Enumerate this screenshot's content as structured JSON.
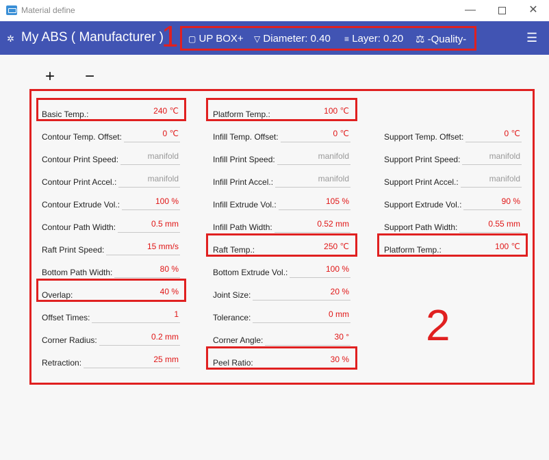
{
  "window": {
    "title": "Material define",
    "minimize_glyph": "—",
    "close_glyph": "✕"
  },
  "header": {
    "material_name": "My ABS ( Manufacturer )",
    "printer_icon": "▢",
    "printer": "UP BOX+",
    "nozzle_icon": "▽",
    "diameter": "Diameter: 0.40",
    "layer_icon": "≡",
    "layer": "Layer: 0.20",
    "quality_icon": "⚖",
    "quality": "-Quality-",
    "gear_icon": "✲",
    "menu_icon": "☰"
  },
  "toolbar": {
    "add_label": "+",
    "remove_label": "−"
  },
  "annotations": {
    "marker_1": "1",
    "marker_2": "2"
  },
  "colors": {
    "header_bg": "#4154b3",
    "annotation_red": "#e02020",
    "value_red": "#e01515"
  },
  "columns": {
    "left": [
      {
        "label": "Basic Temp.:",
        "value": "240 ℃"
      },
      {
        "label": "Contour Temp. Offset:",
        "value": "0 ℃"
      },
      {
        "label": "Contour Print Speed:",
        "value": "manifold"
      },
      {
        "label": "Contour Print Accel.:",
        "value": "manifold"
      },
      {
        "label": "Contour Extrude Vol.:",
        "value": "100 %"
      },
      {
        "label": "Contour Path Width:",
        "value": "0.5 mm"
      },
      {
        "label": "Raft Print Speed:",
        "value": "15 mm/s"
      },
      {
        "label": "Bottom Path Width:",
        "value": "80 %"
      },
      {
        "label": "Overlap:",
        "value": "40 %"
      },
      {
        "label": "Offset Times:",
        "value": "1"
      },
      {
        "label": "Corner Radius:",
        "value": "0.2 mm"
      },
      {
        "label": "Retraction:",
        "value": "25 mm"
      }
    ],
    "middle": [
      {
        "label": "Platform Temp.:",
        "value": "100 ℃"
      },
      {
        "label": "Infill Temp. Offset:",
        "value": "0 ℃"
      },
      {
        "label": "Infill Print Speed:",
        "value": "manifold"
      },
      {
        "label": "Infill Print Accel.:",
        "value": "manifold"
      },
      {
        "label": "Infill Extrude Vol.:",
        "value": "105 %"
      },
      {
        "label": "Infill Path Width:",
        "value": "0.52 mm"
      },
      {
        "label": "Raft Temp.:",
        "value": "250 ℃"
      },
      {
        "label": "Bottom Extrude Vol.:",
        "value": "100 %"
      },
      {
        "label": "Joint Size:",
        "value": "20 %"
      },
      {
        "label": "Tolerance:",
        "value": "0 mm"
      },
      {
        "label": "Corner Angle:",
        "value": "30 °"
      },
      {
        "label": "Peel Ratio:",
        "value": "30 %"
      }
    ],
    "right": [
      {
        "label": "Support Temp. Offset:",
        "value": "0 ℃"
      },
      {
        "label": "Support Print Speed:",
        "value": "manifold"
      },
      {
        "label": "Support Print Accel.:",
        "value": "manifold"
      },
      {
        "label": "Support Extrude Vol.:",
        "value": "90 %"
      },
      {
        "label": "Support Path Width:",
        "value": "0.55 mm"
      },
      {
        "label": "Platform Temp.:",
        "value": "100 ℃"
      }
    ]
  }
}
